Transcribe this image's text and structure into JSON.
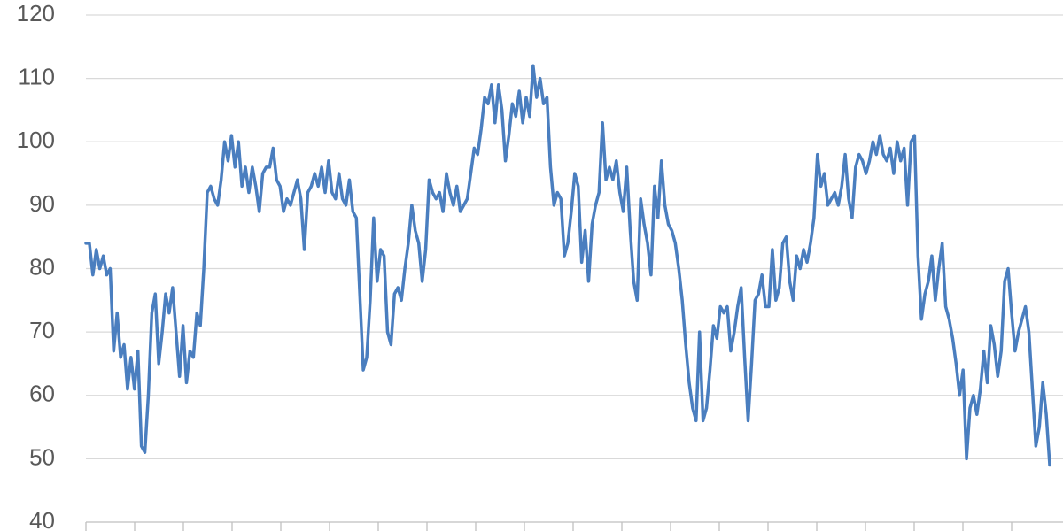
{
  "chart_data": {
    "type": "line",
    "categories": [
      null,
      null,
      null,
      null,
      null,
      null,
      null,
      null,
      null,
      null,
      null,
      null,
      null,
      null,
      null,
      null,
      null,
      null,
      null,
      null,
      null,
      null,
      null,
      null,
      null,
      null,
      null,
      null,
      null,
      null,
      null,
      null,
      null,
      null,
      null,
      null,
      null,
      null,
      null,
      null,
      null,
      null,
      null,
      null,
      null,
      null,
      null,
      null,
      null,
      null,
      null,
      null,
      null,
      null,
      null,
      null,
      null,
      null,
      null,
      null,
      null,
      null,
      null,
      null,
      null,
      null,
      null,
      null,
      null,
      null,
      null,
      null,
      null,
      null,
      null,
      null,
      null,
      null,
      null,
      null,
      null,
      null,
      null,
      null,
      null,
      null,
      null,
      null,
      null,
      null,
      null,
      null,
      null,
      null,
      null,
      null,
      null,
      null,
      null,
      null,
      null,
      null,
      null,
      null,
      null,
      null,
      null,
      null,
      null,
      null,
      null,
      null,
      null,
      null,
      null,
      null,
      null,
      null,
      null,
      null,
      null,
      null,
      null,
      null,
      null,
      null,
      null,
      null,
      null,
      null,
      null,
      null,
      null,
      null,
      null,
      null,
      null,
      null,
      null,
      null,
      null,
      null,
      null,
      null,
      null,
      null,
      null,
      null,
      null,
      null,
      null,
      null,
      null,
      null,
      null,
      null,
      null,
      null,
      null,
      null,
      null,
      null,
      null,
      null,
      null,
      null,
      null,
      null,
      null,
      null,
      null,
      null,
      null,
      null,
      null,
      null,
      null,
      null,
      null,
      null,
      null,
      null,
      null,
      null,
      null,
      null,
      null,
      null,
      null,
      null,
      null,
      null,
      null,
      null,
      null,
      null,
      null,
      null,
      null,
      null,
      null,
      null,
      null,
      null,
      null,
      null,
      null,
      null,
      null,
      null,
      null,
      null,
      null,
      null,
      null,
      null,
      null,
      null,
      null,
      null,
      null,
      null,
      null,
      null,
      null,
      null,
      null,
      null,
      null,
      null,
      null,
      null,
      null,
      null,
      null,
      null,
      null,
      null,
      null,
      null,
      null,
      null,
      null,
      null,
      null,
      null,
      null,
      null,
      null,
      null,
      null,
      null,
      null,
      null,
      null,
      null,
      null,
      null,
      null,
      null,
      null,
      null,
      null,
      null,
      null,
      null,
      null,
      null,
      null,
      null,
      null,
      null,
      null,
      null,
      null,
      null,
      null,
      null,
      null
    ],
    "values": [
      84,
      84,
      79,
      83,
      80,
      82,
      79,
      80,
      67,
      73,
      66,
      68,
      61,
      66,
      61,
      67,
      52,
      51,
      60,
      73,
      76,
      65,
      70,
      76,
      73,
      77,
      70,
      63,
      71,
      62,
      67,
      66,
      73,
      71,
      80,
      92,
      93,
      91,
      90,
      94,
      100,
      97,
      101,
      96,
      100,
      93,
      96,
      92,
      96,
      93,
      89,
      95,
      96,
      96,
      99,
      94,
      93,
      89,
      91,
      90,
      92,
      94,
      91,
      83,
      92,
      93,
      95,
      93,
      96,
      92,
      97,
      92,
      91,
      95,
      91,
      90,
      94,
      89,
      88,
      76,
      64,
      66,
      75,
      88,
      78,
      83,
      82,
      70,
      68,
      76,
      77,
      75,
      80,
      84,
      90,
      86,
      84,
      78,
      83,
      94,
      92,
      91,
      92,
      89,
      95,
      92,
      90,
      93,
      89,
      90,
      91,
      95,
      99,
      98,
      102,
      107,
      106,
      109,
      103,
      109,
      105,
      97,
      101,
      106,
      104,
      108,
      103,
      107,
      104,
      112,
      107,
      110,
      106,
      107,
      96,
      90,
      92,
      91,
      82,
      84,
      89,
      95,
      93,
      81,
      86,
      78,
      87,
      90,
      92,
      103,
      94,
      96,
      94,
      97,
      92,
      89,
      96,
      86,
      78,
      75,
      91,
      87,
      84,
      79,
      93,
      88,
      97,
      90,
      87,
      86,
      84,
      80,
      75,
      68,
      62,
      58,
      56,
      70,
      56,
      58,
      64,
      71,
      69,
      74,
      73,
      74,
      67,
      70,
      74,
      77,
      66,
      56,
      65,
      75,
      76,
      79,
      74,
      74,
      83,
      75,
      77,
      84,
      85,
      78,
      75,
      82,
      80,
      83,
      81,
      84,
      88,
      98,
      93,
      95,
      90,
      91,
      92,
      90,
      93,
      98,
      91,
      88,
      96,
      98,
      97,
      95,
      97,
      100,
      98,
      101,
      98,
      97,
      99,
      95,
      100,
      97,
      99,
      90,
      100,
      101,
      82,
      72,
      76,
      78,
      82,
      75,
      80,
      84,
      74,
      72,
      69,
      65,
      60,
      64,
      50,
      58,
      60,
      57,
      61,
      67,
      62,
      71,
      68,
      63,
      67,
      78,
      80,
      73,
      67,
      70,
      72,
      74,
      70,
      61,
      52,
      55,
      62,
      57,
      49
    ],
    "color": "#4a7ebf",
    "ylim": [
      40,
      120
    ],
    "yticks": [
      40,
      50,
      60,
      70,
      80,
      90,
      100,
      110,
      120
    ],
    "grid": true
  }
}
